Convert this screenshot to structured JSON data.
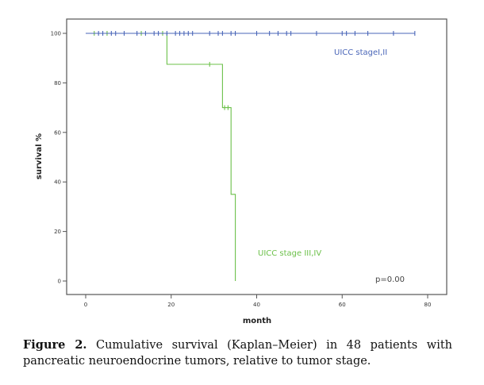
{
  "chart_data": {
    "type": "line",
    "subtype": "kaplan-meier",
    "title": "",
    "xlabel": "month",
    "ylabel": "survival %",
    "xlim": [
      -4,
      84.5
    ],
    "ylim": [
      -5.5,
      105.5
    ],
    "xticks": [
      0,
      20,
      40,
      60,
      80
    ],
    "yticks": [
      0,
      20,
      40,
      60,
      80,
      100
    ],
    "grid": false,
    "legend": "none (inline labels)",
    "series": [
      {
        "name": "UICC stage I,II",
        "label": "UICC stageI,II",
        "color": "#4a66b8",
        "steps": [
          [
            0,
            100
          ],
          [
            77,
            100
          ]
        ],
        "censored": [
          [
            3,
            100
          ],
          [
            4,
            100
          ],
          [
            6,
            100
          ],
          [
            7,
            100
          ],
          [
            9,
            100
          ],
          [
            12,
            100
          ],
          [
            14,
            100
          ],
          [
            16,
            100
          ],
          [
            17,
            100
          ],
          [
            19,
            100
          ],
          [
            21,
            100
          ],
          [
            22,
            100
          ],
          [
            23,
            100
          ],
          [
            24,
            100
          ],
          [
            25,
            100
          ],
          [
            29,
            100
          ],
          [
            31,
            100
          ],
          [
            32,
            100
          ],
          [
            34,
            100
          ],
          [
            35,
            100
          ],
          [
            40,
            100
          ],
          [
            43,
            100
          ],
          [
            45,
            100
          ],
          [
            47,
            100
          ],
          [
            48,
            100
          ],
          [
            54,
            100
          ],
          [
            60,
            100
          ],
          [
            61,
            100
          ],
          [
            63,
            100
          ],
          [
            66,
            100
          ],
          [
            72,
            100
          ],
          [
            77,
            100
          ]
        ]
      },
      {
        "name": "UICC stage III,IV",
        "label": "UICC stage III,IV",
        "color": "#6cc04a",
        "steps": [
          [
            0,
            100
          ],
          [
            19,
            100
          ],
          [
            19,
            87.5
          ],
          [
            32,
            87.5
          ],
          [
            32,
            70
          ],
          [
            34,
            70
          ],
          [
            34,
            35
          ],
          [
            35,
            35
          ],
          [
            35,
            0
          ]
        ],
        "censored": [
          [
            2,
            100
          ],
          [
            5,
            100
          ],
          [
            13,
            100
          ],
          [
            18,
            100
          ],
          [
            29,
            87.5
          ],
          [
            32.5,
            70
          ],
          [
            33.3,
            70
          ]
        ]
      }
    ],
    "annotations": [
      {
        "text": "p=0.00"
      }
    ]
  },
  "caption": {
    "label": "Figure 2.",
    "text": " Cumulative survival (Kaplan–Meier) in 48 patients with pancreatic neuroendocrine tumors, relative to tumor stage."
  }
}
